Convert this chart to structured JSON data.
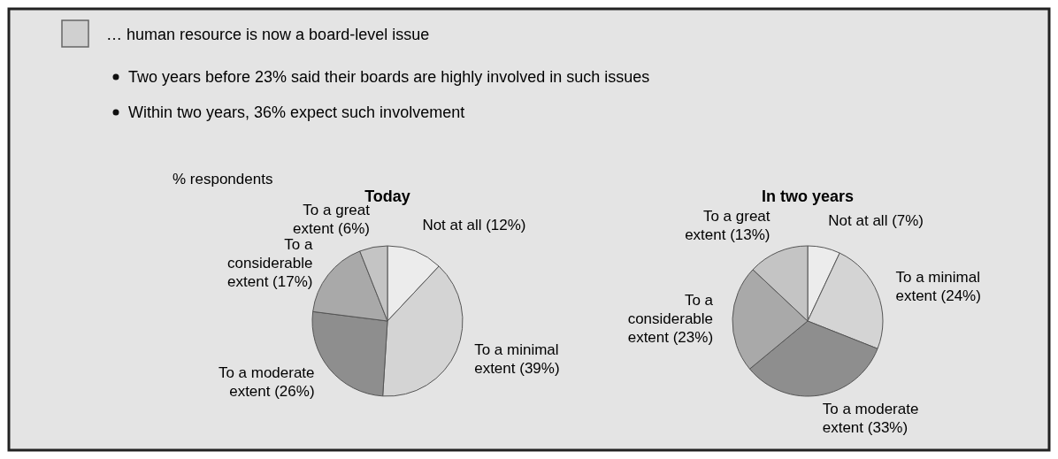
{
  "chart_data": [
    {
      "type": "pie",
      "title": "Today",
      "annotations": [
        "… human resource is now a board-level issue",
        "Two years before 23% said their boards are highly involved in such issues",
        "Within two years, 36% expect such involvement",
        "% respondents"
      ],
      "categories": [
        "Not at all",
        "To a minimal extent",
        "To a moderate extent",
        "To a considerable extent",
        "To a great extent"
      ],
      "values": [
        12,
        39,
        26,
        17,
        6
      ],
      "value_labels": [
        "(12%)",
        "(39%)",
        "(26%)",
        "(17%)",
        "(6%)"
      ],
      "colors": [
        "#ececec",
        "#d4d4d4",
        "#8e8e8e",
        "#a9a9a9",
        "#c4c4c4"
      ]
    },
    {
      "type": "pie",
      "title": "In two years",
      "categories": [
        "Not at all",
        "To a minimal extent",
        "To a moderate extent",
        "To a considerable extent",
        "To a great extent"
      ],
      "values": [
        7,
        24,
        33,
        23,
        13
      ],
      "value_labels": [
        "(7%)",
        "(24%)",
        "(33%)",
        "(23%)",
        "(13%)"
      ],
      "colors": [
        "#ececec",
        "#d4d4d4",
        "#8e8e8e",
        "#a9a9a9",
        "#c4c4c4"
      ]
    }
  ]
}
